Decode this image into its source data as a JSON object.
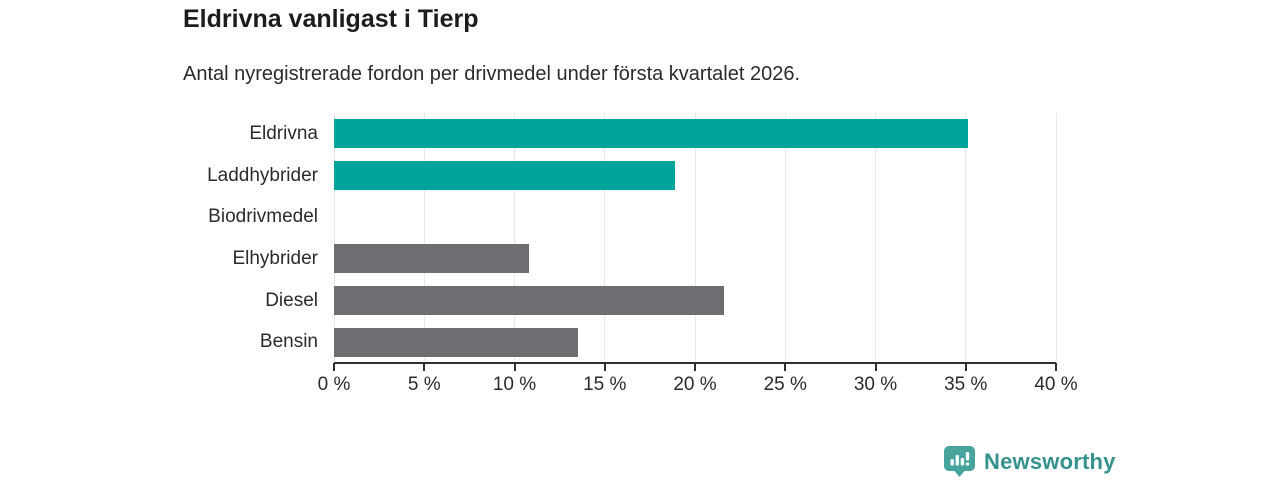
{
  "header": {
    "title": "Eldrivna vanligast i Tierp",
    "subtitle": "Antal nyregistrerade fordon per drivmedel under första kvartalet 2026."
  },
  "chart_data": {
    "type": "bar",
    "orientation": "horizontal",
    "title": "Eldrivna vanligast i Tierp",
    "subtitle": "Antal nyregistrerade fordon per drivmedel under första kvartalet 2026.",
    "categories": [
      "Eldrivna",
      "Laddhybrider",
      "Biodrivmedel",
      "Elhybrider",
      "Diesel",
      "Bensin"
    ],
    "values": [
      35.1,
      18.9,
      0,
      10.8,
      21.6,
      13.5
    ],
    "unit": "%",
    "xlim": [
      0,
      40
    ],
    "x_ticks": [
      0,
      5,
      10,
      15,
      20,
      25,
      30,
      35,
      40
    ],
    "x_tick_labels": [
      "0 %",
      "5 %",
      "10 %",
      "15 %",
      "20 %",
      "25 %",
      "30 %",
      "35 %",
      "40 %"
    ],
    "bar_colors": [
      "#00a49b",
      "#00a49b",
      "#6e6e72",
      "#6e6e72",
      "#6e6e72",
      "#6e6e72"
    ],
    "highlight_color": "#00a49b",
    "default_color": "#6e6e72",
    "grid": true,
    "gridline_color": "#e8e8e8",
    "axis_color": "#2f2f2f",
    "legend": "none"
  },
  "branding": {
    "logo_text": "Newsworthy",
    "logo_text_color": "#35928c",
    "badge_color": "#46a49c"
  }
}
